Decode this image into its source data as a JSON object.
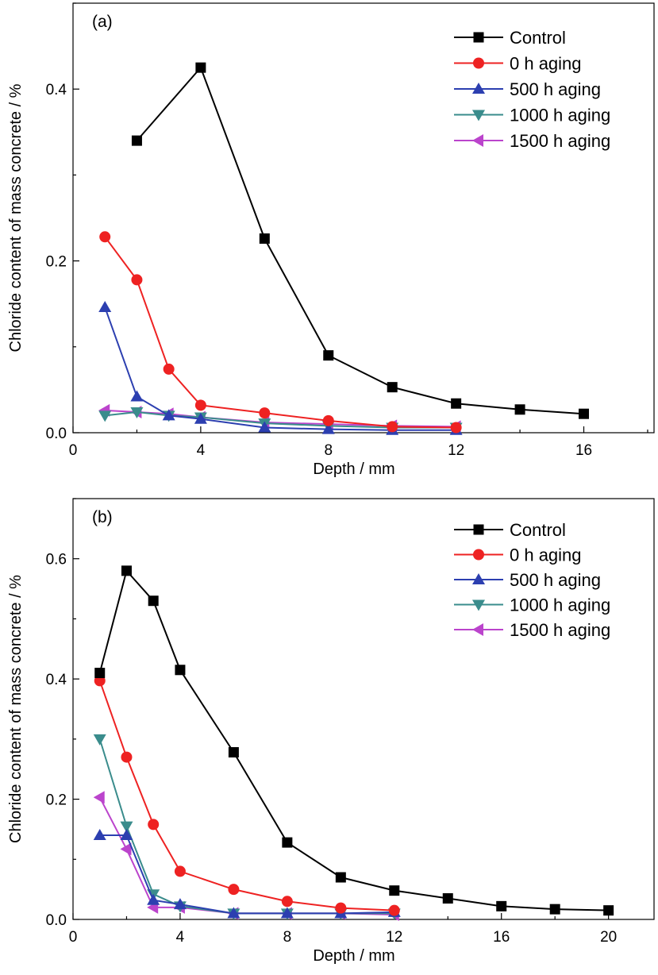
{
  "colors": {
    "Control": "#000000",
    "0 h aging": "#ee2222",
    "500 h aging": "#2c3fb0",
    "1000 h aging": "#3a8c8c",
    "1500 h aging": "#bb44cc"
  },
  "markers": {
    "Control": "square",
    "0 h aging": "circle",
    "500 h aging": "triangle-up",
    "1000 h aging": "triangle-down",
    "1500 h aging": "triangle-left"
  },
  "chart_data": [
    {
      "type": "line",
      "panel_label": "(a)",
      "xlabel": "Depth / mm",
      "ylabel": "Chloride content of mass concrete / %",
      "xlim": [
        0,
        18.2
      ],
      "ylim": [
        0,
        0.5
      ],
      "xticks": [
        0,
        4,
        8,
        12,
        16
      ],
      "yticks": [
        0.0,
        0.2,
        0.4
      ],
      "minor_xticks": [
        2,
        6,
        10,
        14,
        18
      ],
      "minor_yticks": [
        0.1,
        0.3,
        0.5
      ],
      "legend_position": "top-right",
      "series": [
        {
          "name": "Control",
          "x": [
            2,
            4,
            6,
            8,
            10,
            12,
            14,
            16
          ],
          "y": [
            0.34,
            0.425,
            0.226,
            0.09,
            0.053,
            0.034,
            0.027,
            0.022
          ]
        },
        {
          "name": "0 h aging",
          "x": [
            1,
            2,
            3,
            4,
            6,
            8,
            10,
            12
          ],
          "y": [
            0.228,
            0.178,
            0.074,
            0.032,
            0.023,
            0.014,
            0.007,
            0.006
          ]
        },
        {
          "name": "500 h aging",
          "x": [
            1,
            2,
            3,
            4,
            6,
            8,
            10,
            12
          ],
          "y": [
            0.146,
            0.042,
            0.02,
            0.016,
            0.006,
            0.004,
            0.003,
            0.003
          ]
        },
        {
          "name": "1000 h aging",
          "x": [
            1,
            2,
            3,
            4,
            6,
            8,
            10,
            12
          ],
          "y": [
            0.02,
            0.024,
            0.02,
            0.018,
            0.011,
            0.008,
            0.006,
            0.006
          ]
        },
        {
          "name": "1500 h aging",
          "x": [
            1,
            2,
            3,
            4,
            6,
            8,
            10,
            12
          ],
          "y": [
            0.026,
            0.024,
            0.022,
            0.018,
            0.012,
            0.01,
            0.008,
            0.007
          ]
        }
      ]
    },
    {
      "type": "line",
      "panel_label": "(b)",
      "xlabel": "Depth / mm",
      "ylabel": "Chloride content of mass concrete / %",
      "xlim": [
        0,
        21.7
      ],
      "ylim": [
        0,
        0.7
      ],
      "xticks": [
        0,
        4,
        8,
        12,
        16,
        20
      ],
      "yticks": [
        0.0,
        0.2,
        0.4,
        0.6
      ],
      "minor_xticks": [
        2,
        6,
        10,
        14,
        18
      ],
      "minor_yticks": [
        0.1,
        0.3,
        0.5,
        0.7
      ],
      "legend_position": "top-right",
      "series": [
        {
          "name": "Control",
          "x": [
            1,
            2,
            3,
            4,
            6,
            8,
            10,
            12,
            14,
            16,
            18,
            20
          ],
          "y": [
            0.41,
            0.58,
            0.53,
            0.415,
            0.278,
            0.128,
            0.07,
            0.048,
            0.035,
            0.022,
            0.017,
            0.015
          ]
        },
        {
          "name": "0 h aging",
          "x": [
            1,
            2,
            3,
            4,
            6,
            8,
            10,
            12
          ],
          "y": [
            0.397,
            0.27,
            0.158,
            0.08,
            0.05,
            0.03,
            0.019,
            0.015
          ]
        },
        {
          "name": "500 h aging",
          "x": [
            1,
            2,
            3,
            4,
            6,
            8,
            10,
            12
          ],
          "y": [
            0.14,
            0.14,
            0.032,
            0.025,
            0.01,
            0.01,
            0.01,
            0.012
          ]
        },
        {
          "name": "1000 h aging",
          "x": [
            1,
            2,
            3,
            4,
            6,
            8,
            10,
            12
          ],
          "y": [
            0.3,
            0.155,
            0.042,
            0.022,
            0.01,
            0.01,
            0.01,
            0.01
          ]
        },
        {
          "name": "1500 h aging",
          "x": [
            1,
            2,
            3,
            4,
            6,
            8,
            10,
            12
          ],
          "y": [
            0.203,
            0.117,
            0.02,
            0.02,
            0.01,
            0.01,
            0.01,
            0.008
          ]
        }
      ]
    }
  ]
}
